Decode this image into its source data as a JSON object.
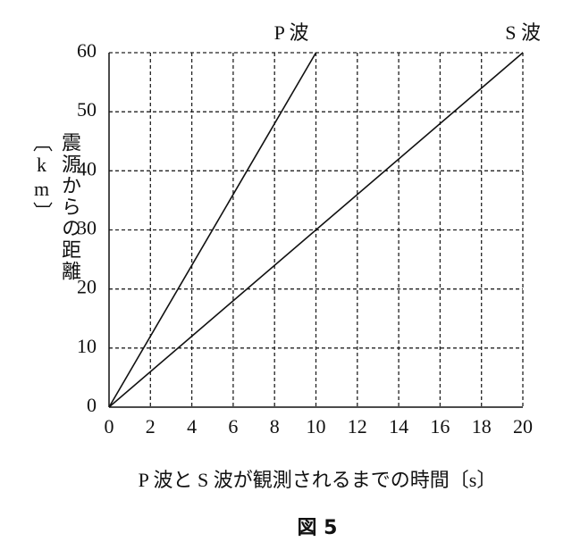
{
  "chart_data": {
    "type": "line",
    "x_label": "P 波と S 波が観測されるまでの時間〔s〕",
    "y_label": "震源からの距離〔km〕",
    "caption": "図 5",
    "xlim": [
      0,
      20
    ],
    "xticks": [
      0,
      2,
      4,
      6,
      8,
      10,
      12,
      14,
      16,
      18,
      20
    ],
    "ylim": [
      0,
      60
    ],
    "yticks": [
      0,
      10,
      20,
      30,
      40,
      50,
      60
    ],
    "grid": true,
    "series": [
      {
        "name": "P 波",
        "color": "#111111",
        "x": [
          0,
          10
        ],
        "values": [
          0,
          60
        ]
      },
      {
        "name": "S 波",
        "color": "#111111",
        "x": [
          0,
          20
        ],
        "values": [
          0,
          60
        ]
      }
    ]
  }
}
